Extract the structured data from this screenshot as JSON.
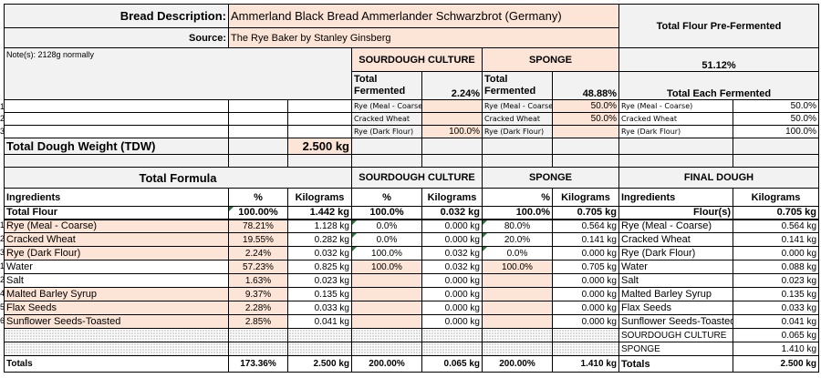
{
  "header": {
    "desc_label": "Bread Description:",
    "desc_value": "Ammerland Black Bread   Ammerlander Schwarzbrot (Germany)",
    "source_label": "Source:",
    "source_value": "The Rye Baker by Stanley Ginsberg",
    "notes": "Note(s): 2128g normally",
    "pre_fermented_label": "Total Flour Pre-Fermented",
    "pre_fermented_value": "51.12%"
  },
  "preferments": {
    "sc_title": "SOURDOUGH CULTURE",
    "sp_title": "SPONGE",
    "total_fermented_label": "Total Fermented",
    "sc_total": "2.24%",
    "sp_total": "48.88%",
    "each_label": "Total Each Fermented",
    "rows": [
      {
        "idx": "1",
        "sc_name": "Rye (Meal - Coarse)",
        "sc_val": "",
        "sp_name": "Rye (Meal - Coarse)",
        "sp_val": "50.0%",
        "each_name": "Rye (Meal - Coarse)",
        "each_val": "50.0%"
      },
      {
        "idx": "2",
        "sc_name": "Cracked Wheat",
        "sc_val": "",
        "sp_name": "Cracked Wheat",
        "sp_val": "50.0%",
        "each_name": "Cracked Wheat",
        "each_val": "50.0%"
      },
      {
        "idx": "3",
        "sc_name": "Rye (Dark  Flour)",
        "sc_val": "100.0%",
        "sp_name": "Rye (Dark  Flour)",
        "sp_val": "",
        "each_name": "Rye (Dark  Flour)",
        "each_val": "100.0%"
      }
    ]
  },
  "tdw": {
    "label": "Total Dough Weight (TDW)",
    "value": "2.500 kg"
  },
  "formula": {
    "title": "Total Formula",
    "sc_title": "SOURDOUGH CULTURE",
    "sp_title": "SPONGE",
    "fd_title": "FINAL DOUGH",
    "headers": {
      "ingredients": "Ingredients",
      "pct": "%",
      "kg": "Kilograms",
      "fd_ingredients": "Ingredients"
    },
    "total_flour": {
      "name": "Total Flour",
      "pct": "100.00%",
      "kg": "1.442 kg",
      "sc_pct": "100.0%",
      "sc_kg": "0.032 kg",
      "sp_pct": "100.0%",
      "sp_kg": "0.705 kg",
      "fd_name": "Flour(s)",
      "fd_kg": "0.705 kg"
    },
    "rows": [
      {
        "idx": "1",
        "name": "Rye (Meal - Coarse)",
        "pct": "78.21%",
        "kg": "1.128 kg",
        "sc_pct": "0.0%",
        "sc_kg": "0.000 kg",
        "sp_pct": "80.0%",
        "sp_kg": "0.564 kg",
        "fd_name": "Rye (Meal - Coarse)",
        "fd_kg": "0.564 kg",
        "flour": true
      },
      {
        "idx": "2",
        "name": "Cracked Wheat",
        "pct": "19.55%",
        "kg": "0.282 kg",
        "sc_pct": "0.0%",
        "sc_kg": "0.000 kg",
        "sp_pct": "20.0%",
        "sp_kg": "0.141 kg",
        "fd_name": "Cracked Wheat",
        "fd_kg": "0.141 kg",
        "flour": true
      },
      {
        "idx": "3",
        "name": "Rye (Dark  Flour)",
        "pct": "2.24%",
        "kg": "0.032 kg",
        "sc_pct": "100.0%",
        "sc_kg": "0.032 kg",
        "sp_pct": "0.0%",
        "sp_kg": "0.000 kg",
        "fd_name": "Rye (Dark  Flour)",
        "fd_kg": "0.000 kg",
        "flour": true
      },
      {
        "idx": "1",
        "name": "Water",
        "pct": "57.23%",
        "kg": "0.825 kg",
        "sc_pct": "100.0%",
        "sc_kg": "0.032 kg",
        "sp_pct": "100.0%",
        "sp_kg": "0.705 kg",
        "fd_name": "Water",
        "fd_kg": "0.088 kg",
        "white": true
      },
      {
        "idx": "2",
        "name": "Salt",
        "pct": "1.63%",
        "kg": "0.023 kg",
        "sc_pct": "",
        "sc_kg": "0.000 kg",
        "sp_pct": "",
        "sp_kg": "0.000 kg",
        "fd_name": "Salt",
        "fd_kg": "0.023 kg",
        "white": true
      },
      {
        "idx": "4",
        "name": "Malted Barley Syrup",
        "pct": "9.37%",
        "kg": "0.135 kg",
        "sc_pct": "",
        "sc_kg": "0.000 kg",
        "sp_pct": "",
        "sp_kg": "0.000 kg",
        "fd_name": "Malted Barley Syrup",
        "fd_kg": "0.135 kg"
      },
      {
        "idx": "5",
        "name": "Flax Seeds",
        "pct": "2.28%",
        "kg": "0.033 kg",
        "sc_pct": "",
        "sc_kg": "0.000 kg",
        "sp_pct": "",
        "sp_kg": "0.000 kg",
        "fd_name": "Flax Seeds",
        "fd_kg": "0.033 kg"
      },
      {
        "idx": "6",
        "name": "Sunflower Seeds-Toasted",
        "pct": "2.85%",
        "kg": "0.041 kg",
        "sc_pct": "",
        "sc_kg": "0.000 kg",
        "sp_pct": "",
        "sp_kg": "0.000 kg",
        "fd_name": "Sunflower Seeds-Toasted",
        "fd_kg": "0.041 kg"
      }
    ],
    "preferment_rows": [
      {
        "name": "SOURDOUGH CULTURE",
        "kg": "0.065 kg"
      },
      {
        "name": "SPONGE",
        "kg": "1.410 kg"
      }
    ],
    "totals": {
      "label": "Totals",
      "pct": "173.36%",
      "kg": "2.500 kg",
      "sc_pct": "200.00%",
      "sc_kg": "0.065 kg",
      "sp_pct": "200.00%",
      "sp_kg": "1.410 kg",
      "fd_label": "Totals",
      "fd_kg": "2.500 kg"
    }
  },
  "colors": {
    "input": "#fce4d6",
    "label": "#f2f2f2",
    "comment_marker": "#1e7b3a"
  }
}
